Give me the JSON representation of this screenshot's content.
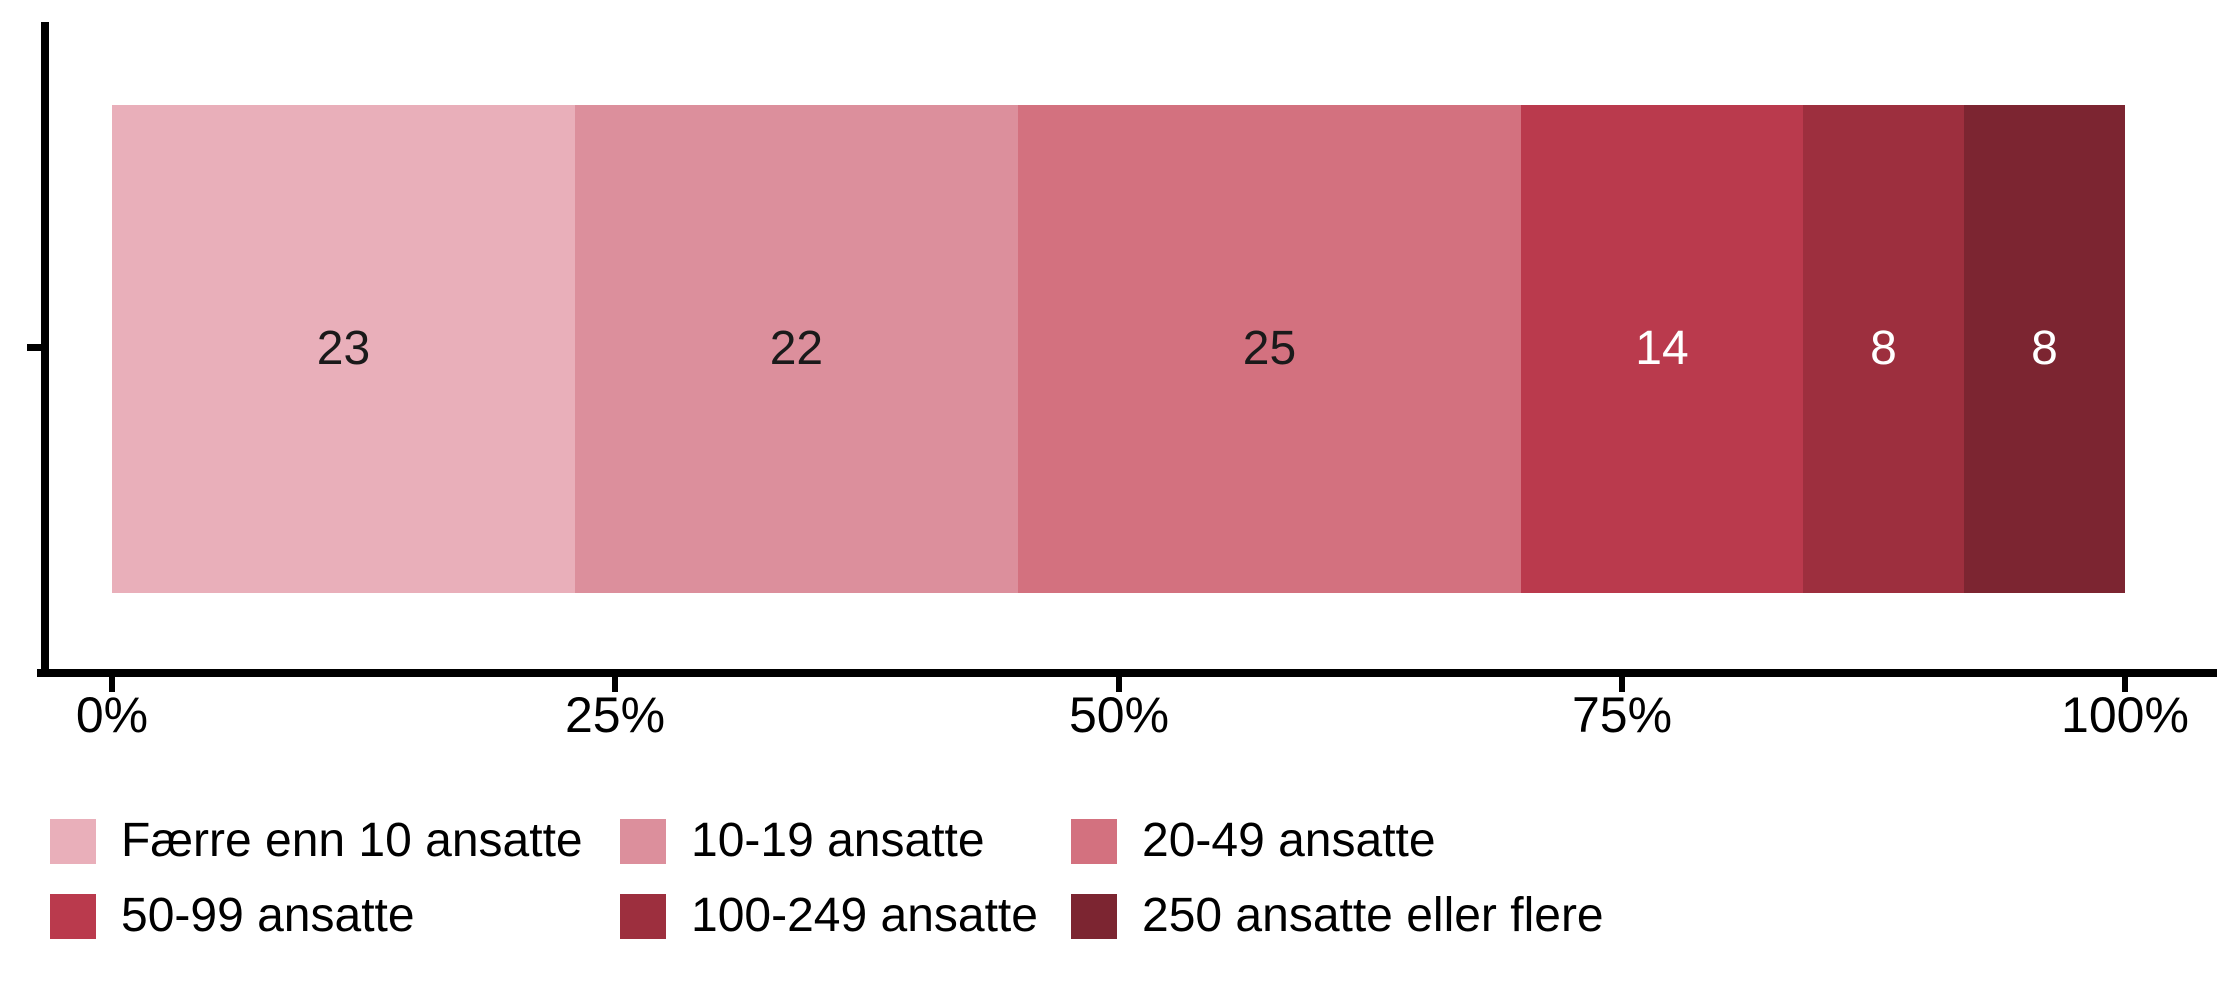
{
  "chart_data": {
    "type": "bar",
    "subtype": "horizontal-stacked-percent",
    "title": "",
    "xlabel": "",
    "ylabel": "",
    "categories": [
      ""
    ],
    "series": [
      {
        "name": "Færre enn 10 ansatte",
        "values": [
          23
        ],
        "color": "#E9AFBA",
        "label_color": "#1A1A1A"
      },
      {
        "name": "10-19 ansatte",
        "values": [
          22
        ],
        "color": "#DC8F9C",
        "label_color": "#1A1A1A"
      },
      {
        "name": "20-49 ansatte",
        "values": [
          25
        ],
        "color": "#D3717F",
        "label_color": "#1A1A1A"
      },
      {
        "name": "50-99 ansatte",
        "values": [
          14
        ],
        "color": "#BA3A4D",
        "label_color": "#FFFFFF"
      },
      {
        "name": "100-249 ansatte",
        "values": [
          8
        ],
        "color": "#9D2F3E",
        "label_color": "#FFFFFF"
      },
      {
        "name": "250 ansatte eller flere",
        "values": [
          8
        ],
        "color": "#7C2531",
        "label_color": "#FFFFFF"
      }
    ],
    "x_axis": {
      "range": [
        0,
        100
      ],
      "ticks": [
        {
          "label": "0%",
          "value": 0
        },
        {
          "label": "25%",
          "value": 25
        },
        {
          "label": "50%",
          "value": 50
        },
        {
          "label": "75%",
          "value": 75
        },
        {
          "label": "100%",
          "value": 100
        }
      ]
    },
    "grid": false,
    "legend_position": "bottom",
    "axis_color": "#000000"
  }
}
